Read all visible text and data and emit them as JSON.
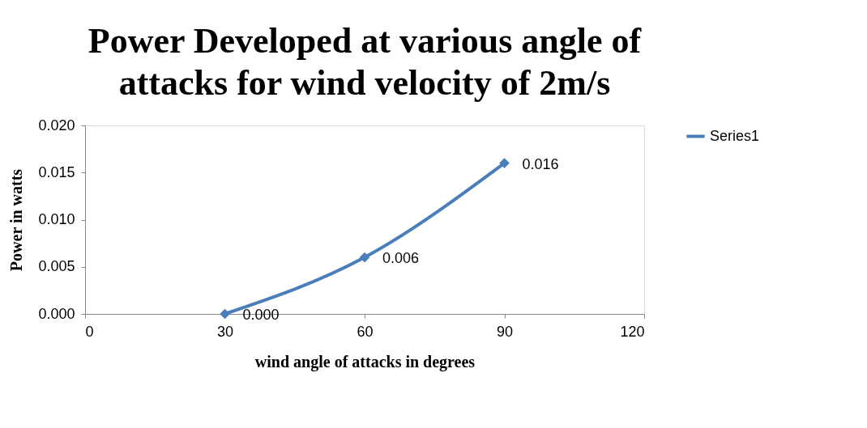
{
  "chart_data": {
    "type": "line",
    "title": "Power Developed at various angle of attacks for wind velocity of 2m/s",
    "xlabel": "wind angle of attacks in degrees",
    "ylabel": "Power in watts",
    "x": [
      30,
      60,
      90
    ],
    "series": [
      {
        "name": "Series1",
        "color": "#4a7ebb",
        "values": [
          0.0,
          0.006,
          0.016
        ],
        "value_labels": [
          "0.000",
          "0.006",
          "0.016"
        ]
      }
    ],
    "xlim": [
      0,
      120
    ],
    "xticks": [
      0,
      30,
      60,
      90,
      120
    ],
    "ylim": [
      0,
      0.02
    ],
    "yticks": [
      {
        "value": 0,
        "label": "0.000"
      },
      {
        "value": 0.005,
        "label": "0.005"
      },
      {
        "value": 0.01,
        "label": "0.010"
      },
      {
        "value": 0.015,
        "label": "0.015"
      },
      {
        "value": 0.02,
        "label": "0.020"
      }
    ],
    "legend": "right",
    "marker": "diamond",
    "line_style": "solid",
    "grid": false
  }
}
